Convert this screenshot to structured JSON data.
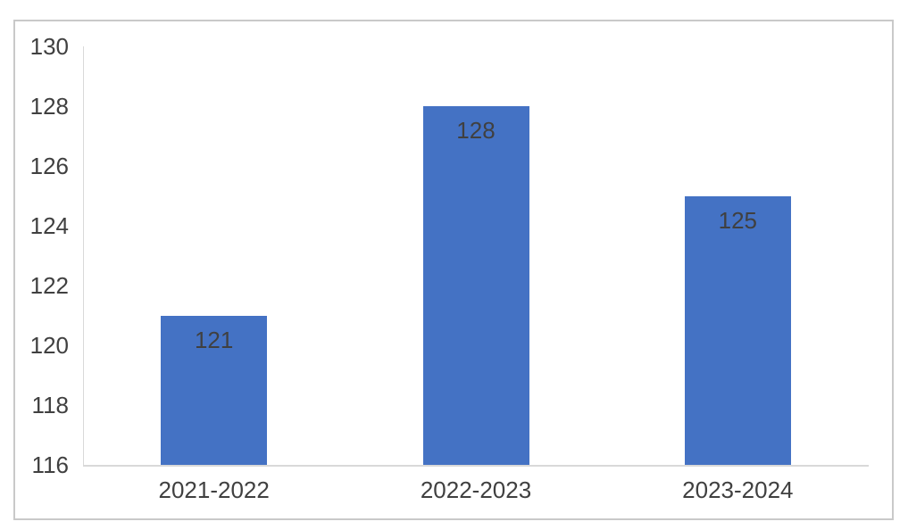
{
  "chart_data": {
    "type": "bar",
    "categories": [
      "2021-2022",
      "2022-2023",
      "2023-2024"
    ],
    "values": [
      121,
      128,
      125
    ],
    "data_labels": [
      "121",
      "128",
      "125"
    ],
    "title": "",
    "xlabel": "",
    "ylabel": "",
    "ylim": [
      116,
      130
    ],
    "yticks": [
      116,
      118,
      120,
      122,
      124,
      126,
      128,
      130
    ],
    "grid": false,
    "legend": false,
    "data_label_position": "inside-end",
    "colors": {
      "bar": "#4472C4",
      "text": "#404040",
      "axis_line": "#d9d9d9",
      "frame_border": "#c9c9c9",
      "background": "#ffffff"
    }
  }
}
